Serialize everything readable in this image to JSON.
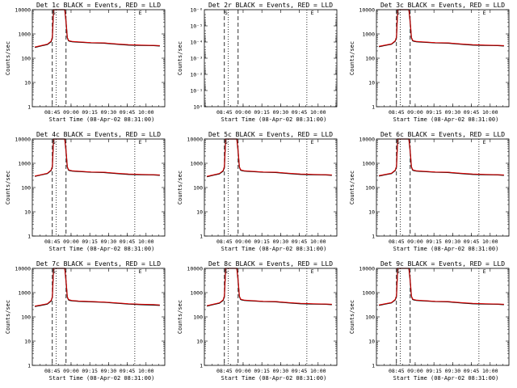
{
  "colors": {
    "events": "#000000",
    "lld": "#e00000",
    "frame": "#000000",
    "background": "#ffffff"
  },
  "common": {
    "ylabel": "Counts/sec",
    "xlabel": "Start Time (08-Apr-02 08:31:00)",
    "x_ticks": [
      "08:45",
      "09:00",
      "09:15",
      "09:30",
      "09:45",
      "10:00"
    ],
    "y_ticks_log": [
      "1",
      "10",
      "100",
      "1000",
      "10000"
    ]
  },
  "chart_data": [
    {
      "type": "line",
      "title": "Det 1c BLACK = Events, RED = LLD",
      "scale": "log",
      "ylim": [
        1,
        10000
      ],
      "x_minutes": [
        0,
        5,
        10,
        13,
        14,
        15,
        16,
        17,
        18,
        24,
        25,
        26,
        27,
        28,
        30,
        35,
        45,
        55,
        65,
        75,
        85,
        95,
        100
      ],
      "series": [
        {
          "name": "Events",
          "values": [
            280,
            320,
            370,
            480,
            700,
            10000,
            10000,
            10000,
            10000,
            10000,
            3000,
            700,
            520,
            500,
            480,
            460,
            430,
            420,
            380,
            350,
            340,
            330,
            320
          ]
        },
        {
          "name": "LLD",
          "values": [
            290,
            330,
            380,
            500,
            750,
            10000,
            10000,
            10000,
            10000,
            10000,
            3200,
            720,
            540,
            520,
            490,
            470,
            440,
            430,
            390,
            360,
            350,
            340,
            330
          ]
        }
      ],
      "markers": [
        {
          "label": "S",
          "x": 16
        },
        {
          "label": "E",
          "x": 85
        }
      ]
    },
    {
      "type": "line",
      "title": "Det 2r BLACK = Events, RED = LLD",
      "scale": "log",
      "ylim": [
        1,
        1e-06
      ],
      "y_ticks": [
        "10⁰",
        "10⁻¹",
        "10⁻²",
        "10⁻³",
        "10⁻⁴",
        "10⁻⁵",
        "10⁻⁶"
      ],
      "series": [],
      "markers": [
        {
          "label": "S",
          "x": 16
        },
        {
          "label": "E",
          "x": 85
        }
      ]
    },
    {
      "type": "line",
      "title": "Det 3c BLACK = Events, RED = LLD",
      "scale": "log",
      "ylim": [
        1,
        10000
      ],
      "x_minutes": [
        0,
        5,
        10,
        13,
        14,
        15,
        16,
        17,
        18,
        24,
        25,
        26,
        27,
        28,
        30,
        35,
        45,
        55,
        65,
        75,
        85,
        95,
        100
      ],
      "series": [
        {
          "name": "Events",
          "values": [
            300,
            340,
            380,
            500,
            720,
            10000,
            10000,
            10000,
            10000,
            10000,
            3000,
            700,
            520,
            500,
            480,
            460,
            430,
            420,
            380,
            350,
            340,
            330,
            320
          ]
        },
        {
          "name": "LLD",
          "values": [
            310,
            350,
            390,
            520,
            760,
            10000,
            10000,
            10000,
            10000,
            10000,
            3200,
            720,
            540,
            520,
            490,
            470,
            440,
            430,
            390,
            360,
            350,
            340,
            330
          ]
        }
      ],
      "markers": [
        {
          "label": "S",
          "x": 16
        },
        {
          "label": "E",
          "x": 85
        }
      ]
    },
    {
      "type": "line",
      "title": "Det 4c BLACK = Events, RED = LLD",
      "scale": "log",
      "ylim": [
        1,
        10000
      ],
      "x_minutes": [
        0,
        5,
        10,
        13,
        14,
        15,
        16,
        17,
        18,
        24,
        25,
        26,
        27,
        28,
        30,
        35,
        45,
        55,
        65,
        75,
        85,
        95,
        100
      ],
      "series": [
        {
          "name": "Events",
          "values": [
            290,
            330,
            380,
            500,
            720,
            10000,
            10000,
            10000,
            10000,
            10000,
            3000,
            700,
            520,
            500,
            480,
            460,
            430,
            420,
            380,
            350,
            340,
            330,
            320
          ]
        },
        {
          "name": "LLD",
          "values": [
            300,
            340,
            390,
            520,
            760,
            10000,
            10000,
            10000,
            10000,
            10000,
            3200,
            720,
            540,
            520,
            490,
            470,
            440,
            430,
            390,
            360,
            350,
            340,
            330
          ]
        }
      ],
      "markers": [
        {
          "label": "S",
          "x": 16
        },
        {
          "label": "E",
          "x": 85
        }
      ]
    },
    {
      "type": "line",
      "title": "Det 5c BLACK = Events, RED = LLD",
      "scale": "log",
      "ylim": [
        1,
        10000
      ],
      "x_minutes": [
        0,
        5,
        10,
        13,
        14,
        15,
        16,
        17,
        18,
        24,
        25,
        26,
        27,
        28,
        30,
        35,
        45,
        55,
        65,
        75,
        85,
        95,
        100
      ],
      "series": [
        {
          "name": "Events",
          "values": [
            280,
            320,
            370,
            480,
            700,
            10000,
            10000,
            10000,
            10000,
            10000,
            3000,
            700,
            520,
            500,
            480,
            460,
            430,
            420,
            380,
            350,
            340,
            330,
            320
          ]
        },
        {
          "name": "LLD",
          "values": [
            290,
            330,
            380,
            500,
            750,
            10000,
            10000,
            10000,
            10000,
            10000,
            3200,
            720,
            540,
            520,
            490,
            470,
            440,
            430,
            390,
            360,
            350,
            340,
            330
          ]
        }
      ],
      "markers": [
        {
          "label": "S",
          "x": 16
        },
        {
          "label": "E",
          "x": 85
        }
      ]
    },
    {
      "type": "line",
      "title": "Det 6c BLACK = Events, RED = LLD",
      "scale": "log",
      "ylim": [
        1,
        10000
      ],
      "x_minutes": [
        0,
        5,
        10,
        13,
        14,
        15,
        16,
        17,
        18,
        24,
        25,
        26,
        27,
        28,
        30,
        35,
        45,
        55,
        65,
        75,
        85,
        95,
        100
      ],
      "series": [
        {
          "name": "Events",
          "values": [
            300,
            340,
            380,
            500,
            720,
            10000,
            10000,
            10000,
            10000,
            10000,
            3000,
            700,
            520,
            500,
            480,
            460,
            430,
            420,
            380,
            350,
            340,
            330,
            320
          ]
        },
        {
          "name": "LLD",
          "values": [
            310,
            350,
            390,
            520,
            760,
            10000,
            10000,
            10000,
            10000,
            10000,
            3200,
            720,
            540,
            520,
            490,
            470,
            440,
            430,
            390,
            360,
            350,
            340,
            330
          ]
        }
      ],
      "markers": [
        {
          "label": "S",
          "x": 16
        },
        {
          "label": "E",
          "x": 85
        }
      ]
    },
    {
      "type": "line",
      "title": "Det 7c BLACK = Events, RED = LLD",
      "scale": "log",
      "ylim": [
        1,
        10000
      ],
      "x_minutes": [
        0,
        5,
        10,
        13,
        14,
        15,
        16,
        17,
        18,
        24,
        25,
        26,
        27,
        28,
        30,
        35,
        45,
        55,
        65,
        75,
        85,
        95,
        100
      ],
      "series": [
        {
          "name": "Events",
          "values": [
            270,
            300,
            340,
            450,
            650,
            10000,
            10000,
            10000,
            10000,
            10000,
            2800,
            650,
            500,
            480,
            460,
            440,
            420,
            400,
            370,
            340,
            320,
            310,
            300
          ]
        },
        {
          "name": "LLD",
          "values": [
            280,
            310,
            350,
            470,
            680,
            10000,
            10000,
            10000,
            10000,
            10000,
            3000,
            680,
            520,
            500,
            470,
            450,
            430,
            410,
            380,
            350,
            330,
            320,
            310
          ]
        }
      ],
      "markers": [
        {
          "label": "S",
          "x": 16
        },
        {
          "label": "E",
          "x": 85
        }
      ]
    },
    {
      "type": "line",
      "title": "Det 8c BLACK = Events, RED = LLD",
      "scale": "log",
      "ylim": [
        1,
        10000
      ],
      "x_minutes": [
        0,
        5,
        10,
        13,
        14,
        15,
        16,
        17,
        18,
        24,
        25,
        26,
        27,
        28,
        30,
        35,
        45,
        55,
        65,
        75,
        85,
        95,
        100
      ],
      "series": [
        {
          "name": "Events",
          "values": [
            280,
            320,
            370,
            480,
            700,
            10000,
            10000,
            10000,
            10000,
            10000,
            3000,
            700,
            520,
            500,
            480,
            460,
            430,
            420,
            380,
            350,
            340,
            330,
            320
          ]
        },
        {
          "name": "LLD",
          "values": [
            290,
            330,
            380,
            500,
            750,
            10000,
            10000,
            10000,
            10000,
            10000,
            3200,
            720,
            540,
            520,
            490,
            470,
            440,
            430,
            390,
            360,
            350,
            340,
            330
          ]
        }
      ],
      "markers": [
        {
          "label": "S",
          "x": 16
        },
        {
          "label": "E",
          "x": 85
        }
      ]
    },
    {
      "type": "line",
      "title": "Det 9c BLACK = Events, RED = LLD",
      "scale": "log",
      "ylim": [
        1,
        10000
      ],
      "x_minutes": [
        0,
        5,
        10,
        13,
        14,
        15,
        16,
        17,
        18,
        24,
        25,
        26,
        27,
        28,
        30,
        35,
        45,
        55,
        65,
        75,
        85,
        95,
        100
      ],
      "series": [
        {
          "name": "Events",
          "values": [
            300,
            340,
            380,
            500,
            720,
            10000,
            10000,
            10000,
            10000,
            10000,
            3000,
            700,
            520,
            500,
            480,
            460,
            430,
            420,
            380,
            350,
            340,
            330,
            320
          ]
        },
        {
          "name": "LLD",
          "values": [
            310,
            350,
            390,
            520,
            760,
            10000,
            10000,
            10000,
            10000,
            10000,
            3200,
            720,
            540,
            520,
            490,
            470,
            440,
            430,
            390,
            360,
            350,
            340,
            330
          ]
        }
      ],
      "markers": [
        {
          "label": "S",
          "x": 16
        },
        {
          "label": "E",
          "x": 85
        }
      ]
    }
  ]
}
